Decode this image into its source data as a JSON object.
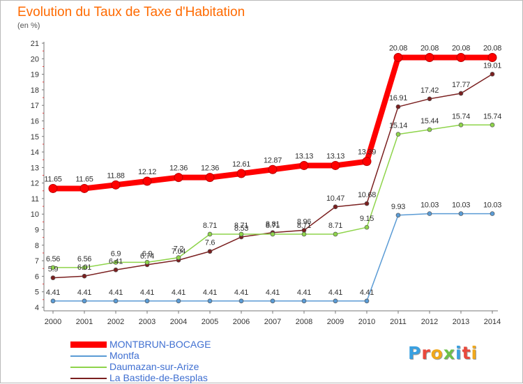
{
  "title": "Evolution du Taux de Taxe d'Habitation",
  "unit": "(en %)",
  "logo": {
    "text": "Proxiti",
    "colors": [
      "#3aa0e0",
      "#e9483b",
      "#f0a81c",
      "#6cc04a",
      "#3aa0e0",
      "#e9483b",
      "#f0a81c"
    ]
  },
  "chart_data": {
    "type": "line",
    "title": "Evolution du Taux de Taxe d'Habitation",
    "ylabel": "(en %)",
    "xlabel": "",
    "x": [
      "2000",
      "2001",
      "2002",
      "2003",
      "2004",
      "2005",
      "2006",
      "2007",
      "2008",
      "2009",
      "2010",
      "2011",
      "2012",
      "2013",
      "2014"
    ],
    "ylim": [
      4,
      21
    ],
    "yticks": [
      4,
      5,
      6,
      7,
      8,
      9,
      10,
      11,
      12,
      13,
      14,
      15,
      16,
      17,
      18,
      19,
      20,
      21
    ],
    "grid": false,
    "legend_position": "bottom-left",
    "series": [
      {
        "name": "MONTBRUN-BOCAGE",
        "color": "#ff0000",
        "values": [
          11.65,
          11.65,
          11.88,
          12.12,
          12.36,
          12.36,
          12.61,
          12.87,
          13.13,
          13.13,
          13.39,
          20.08,
          20.08,
          20.08,
          20.08
        ],
        "labels": [
          "11.65",
          "11.65",
          "11.88",
          "12.12",
          "12.36",
          "12.36",
          "12.61",
          "12.87",
          "13.13",
          "13.13",
          "13.39",
          "20.08",
          "20.08",
          "20.08",
          "20.08"
        ]
      },
      {
        "name": "Montfa",
        "color": "#5a9bd5",
        "values": [
          4.41,
          4.41,
          4.41,
          4.41,
          4.41,
          4.41,
          4.41,
          4.41,
          4.41,
          4.41,
          4.41,
          9.93,
          10.03,
          10.03,
          10.03
        ],
        "labels": [
          "4.41",
          "4.41",
          "4.41",
          "4.41",
          "4.41",
          "4.41",
          "4.41",
          "4.41",
          "4.41",
          "4.41",
          "4.41",
          "9.93",
          "10.03",
          "10.03",
          "10.03"
        ]
      },
      {
        "name": "Daumazan-sur-Arize",
        "color": "#8ed44a",
        "values": [
          6.56,
          6.56,
          6.9,
          6.9,
          7.2,
          8.71,
          8.71,
          8.71,
          8.71,
          8.71,
          9.15,
          15.14,
          15.44,
          15.74,
          15.74
        ],
        "labels": [
          "6.56",
          "6.56",
          "6.9",
          "6.9",
          "7.2",
          "8.71",
          "8.71",
          "8.71",
          "8.71",
          "8.71",
          "9.15",
          "15.14",
          "15.44",
          "15.74",
          "15.74"
        ]
      },
      {
        "name": "La Bastide-de-Besplas",
        "color": "#7a1f1f",
        "values": [
          5.9,
          6.01,
          6.41,
          6.74,
          7.04,
          7.6,
          8.53,
          8.81,
          8.96,
          10.47,
          10.68,
          16.91,
          17.42,
          17.77,
          19.01
        ],
        "labels": [
          "5.9",
          "6.01",
          "6.41",
          "6.74",
          "7.04",
          "7.6",
          "8.53",
          "8.81",
          "8.96",
          "10.47",
          "10.68",
          "16.91",
          "17.42",
          "17.77",
          "19.01"
        ]
      }
    ]
  }
}
